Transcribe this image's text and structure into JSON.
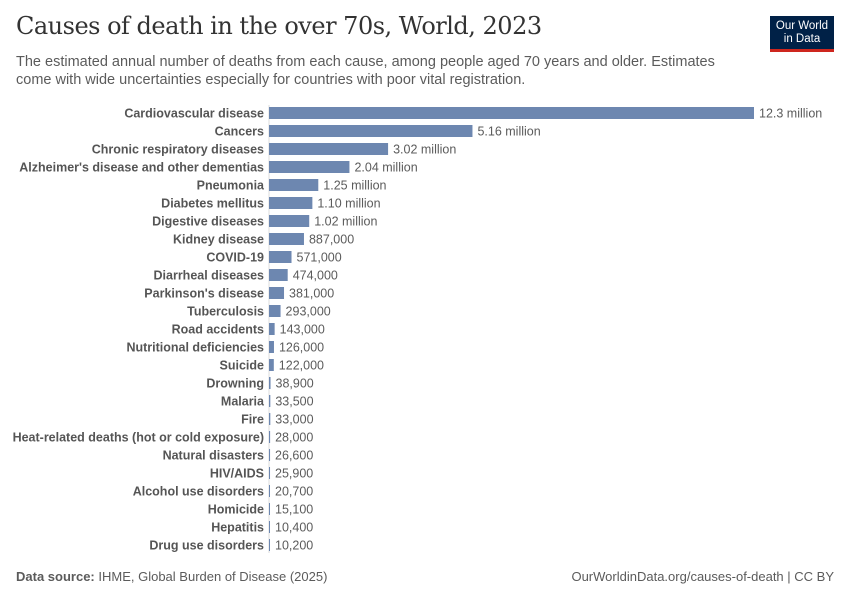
{
  "title": "Causes of death in the over 70s, World, 2023",
  "subtitle": "The estimated annual number of deaths from each cause, among people aged 70 years and older. Estimates come with wide uncertainties especially for countries with poor vital registration.",
  "logo": {
    "line1": "Our World",
    "line2": "in Data"
  },
  "footer": {
    "source_label": "Data source:",
    "source": "IHME, Global Burden of Disease (2025)",
    "url": "OurWorldinData.org/causes-of-death | CC BY"
  },
  "colors": {
    "bar": "#6d87b0",
    "text": "#333333"
  },
  "chart_data": {
    "type": "bar",
    "orientation": "horizontal",
    "title": "Causes of death in the over 70s, World, 2023",
    "categories": [
      "Cardiovascular disease",
      "Cancers",
      "Chronic respiratory diseases",
      "Alzheimer's disease and other dementias",
      "Pneumonia",
      "Diabetes mellitus",
      "Digestive diseases",
      "Kidney disease",
      "COVID-19",
      "Diarrheal diseases",
      "Parkinson's disease",
      "Tuberculosis",
      "Road accidents",
      "Nutritional deficiencies",
      "Suicide",
      "Drowning",
      "Malaria",
      "Fire",
      "Heat-related deaths (hot or cold exposure)",
      "Natural disasters",
      "HIV/AIDS",
      "Alcohol use disorders",
      "Homicide",
      "Hepatitis",
      "Drug use disorders"
    ],
    "values": [
      12300000,
      5160000,
      3020000,
      2040000,
      1250000,
      1100000,
      1020000,
      887000,
      571000,
      474000,
      381000,
      293000,
      143000,
      126000,
      122000,
      38900,
      33500,
      33000,
      28000,
      26600,
      25900,
      20700,
      15100,
      10400,
      10200
    ],
    "labels": [
      "12.3 million",
      "5.16 million",
      "3.02 million",
      "2.04 million",
      "1.25 million",
      "1.10 million",
      "1.02 million",
      "887,000",
      "571,000",
      "474,000",
      "381,000",
      "293,000",
      "143,000",
      "126,000",
      "122,000",
      "38,900",
      "33,500",
      "33,000",
      "28,000",
      "26,600",
      "25,900",
      "20,700",
      "15,100",
      "10,400",
      "10,200"
    ],
    "xlim": [
      0,
      12300000
    ],
    "grid": false,
    "legend": "none"
  }
}
